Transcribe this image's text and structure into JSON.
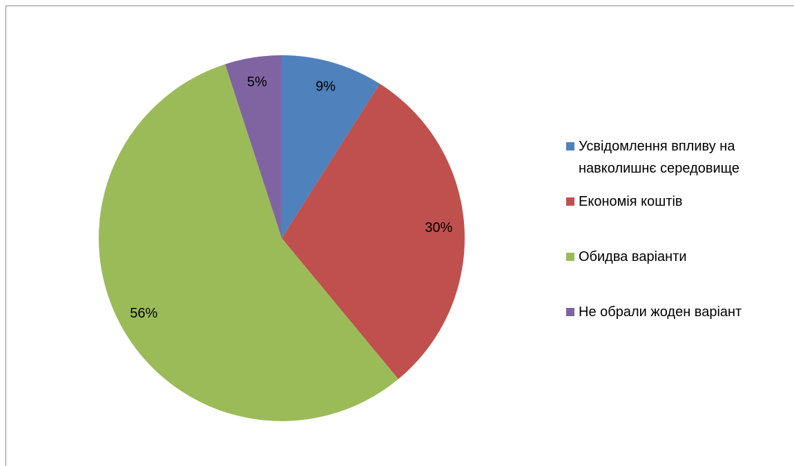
{
  "chart_data": {
    "type": "pie",
    "categories": [
      "Усвідомлення впливу на навколишнє середовище",
      "Економія коштів",
      "Обидва варіанти",
      "Не обрали жоден варіант"
    ],
    "values": [
      9,
      30,
      56,
      5
    ],
    "value_labels": [
      "9%",
      "30%",
      "56%",
      "5%"
    ],
    "colors": [
      "#4f81bd",
      "#c0504d",
      "#9bbb59",
      "#8064a2"
    ],
    "legend": "right"
  }
}
